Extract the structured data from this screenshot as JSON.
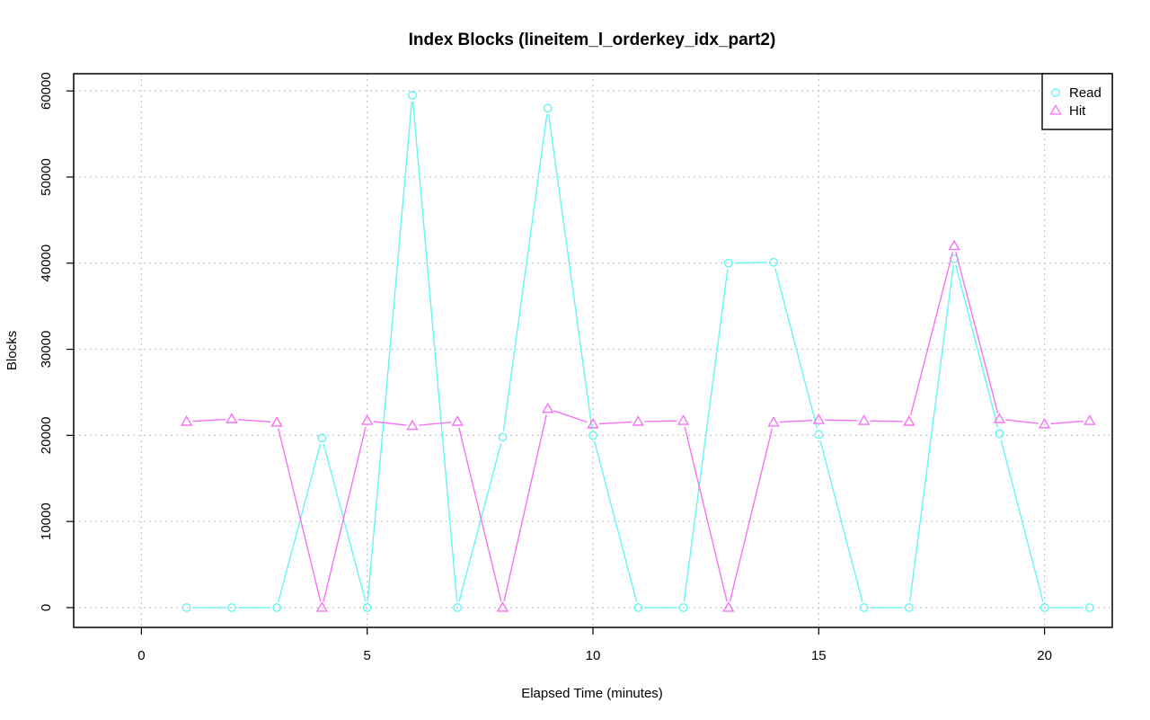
{
  "chart_data": {
    "type": "line",
    "title": "Index Blocks (lineitem_l_orderkey_idx_part2)",
    "xlabel": "Elapsed Time (minutes)",
    "ylabel": "Blocks",
    "xlim": [
      -1.5,
      21.5
    ],
    "ylim": [
      -2300,
      62000
    ],
    "x_ticks": [
      0,
      5,
      10,
      15,
      20
    ],
    "y_ticks": [
      0,
      10000,
      20000,
      30000,
      40000,
      50000,
      60000
    ],
    "grid": true,
    "legend_position": "top-right",
    "x": [
      1,
      2,
      3,
      4,
      5,
      6,
      7,
      8,
      9,
      10,
      11,
      12,
      13,
      14,
      15,
      16,
      17,
      18,
      19,
      20,
      21
    ],
    "series": [
      {
        "name": "Read",
        "color": "#66f5f5",
        "marker": "circle",
        "values": [
          0,
          0,
          0,
          19700,
          0,
          59500,
          0,
          19800,
          58000,
          20000,
          0,
          0,
          40000,
          40100,
          20100,
          0,
          0,
          40500,
          20200,
          0,
          0
        ]
      },
      {
        "name": "Hit",
        "color": "#f573f5",
        "marker": "triangle",
        "values": [
          21600,
          21900,
          21500,
          0,
          21700,
          21100,
          21600,
          0,
          23100,
          21300,
          21600,
          21700,
          0,
          21500,
          21800,
          21700,
          21600,
          42000,
          21900,
          21300,
          21700
        ]
      }
    ]
  }
}
